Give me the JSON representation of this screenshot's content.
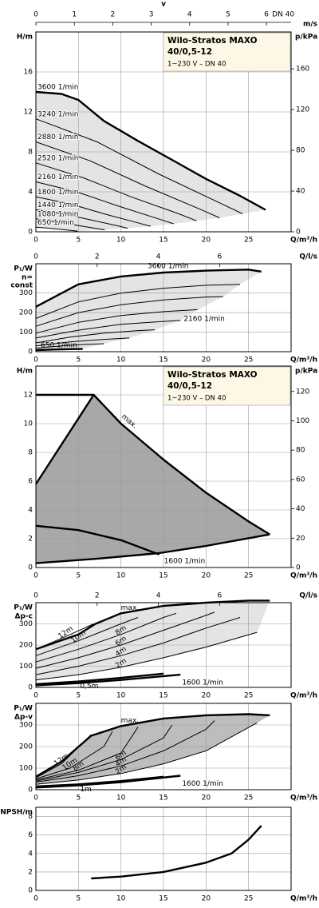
{
  "chart_data": [
    {
      "type": "line",
      "title": "Wilo-Stratos MAXO",
      "subtitle": "40/0,5-12",
      "note": "1~230 V – DN 40",
      "y_label": "H/m",
      "x_label": "Q/m³/h",
      "y2_label": "p/kPa",
      "xlim": [
        0,
        30
      ],
      "xticks": [
        0,
        5,
        10,
        15,
        20,
        25
      ],
      "ylim": [
        0,
        20
      ],
      "yticks": [
        0,
        4,
        8,
        12,
        16
      ],
      "y2lim": [
        0,
        196.2
      ],
      "y2ticks": [
        0,
        40,
        80,
        120,
        160
      ],
      "top_axis": {
        "label": "v",
        "unit": "m/s",
        "lim": [
          0,
          6.64
        ],
        "ticks": [
          0,
          1,
          2,
          3,
          4,
          5,
          6
        ],
        "note": "DN 40"
      },
      "grid": true,
      "color": "#000000",
      "shade_color": "#e4e4e4",
      "series": [
        {
          "name": "3600 1/min",
          "style": "bold",
          "x": [
            0,
            3,
            5,
            8,
            12,
            16,
            20,
            24,
            27
          ],
          "values": [
            14,
            13.8,
            13.2,
            11.1,
            9.1,
            7.2,
            5.3,
            3.6,
            2.2
          ]
        },
        {
          "name": "3240 1/min",
          "x": [
            0,
            7.2,
            14.4,
            21.6,
            24.3
          ],
          "values": [
            11.3,
            9.0,
            5.8,
            2.9,
            1.8
          ]
        },
        {
          "name": "2880 1/min",
          "x": [
            0,
            6.4,
            12.8,
            19.2,
            21.6
          ],
          "values": [
            9.0,
            7.1,
            4.6,
            2.3,
            1.4
          ]
        },
        {
          "name": "2520 1/min",
          "x": [
            0,
            5.6,
            11.2,
            16.8,
            18.9
          ],
          "values": [
            6.9,
            5.4,
            3.5,
            1.8,
            1.1
          ]
        },
        {
          "name": "2160 1/min",
          "x": [
            0,
            4.8,
            9.6,
            14.4,
            16.2
          ],
          "values": [
            5.0,
            4.0,
            2.6,
            1.3,
            0.8
          ]
        },
        {
          "name": "1800 1/min",
          "x": [
            0,
            4,
            8,
            12,
            13.5
          ],
          "values": [
            3.5,
            2.8,
            1.8,
            0.9,
            0.55
          ]
        },
        {
          "name": "1440 1/min",
          "x": [
            0,
            3.2,
            6.4,
            9.6,
            10.8
          ],
          "values": [
            2.2,
            1.8,
            1.2,
            0.6,
            0.35
          ]
        },
        {
          "name": "1080 1/min",
          "x": [
            0,
            2.4,
            4.8,
            7.2,
            8.1
          ],
          "values": [
            1.3,
            1.0,
            0.65,
            0.32,
            0.2
          ]
        },
        {
          "name": "650 1/min",
          "x": [
            0,
            1.4,
            2.9,
            4.3,
            4.9
          ],
          "values": [
            0.46,
            0.37,
            0.24,
            0.12,
            0.07
          ]
        }
      ]
    },
    {
      "type": "line",
      "y_label": "P₁/W",
      "mode_label": [
        "n=",
        "const"
      ],
      "x_label": "Q/m³/h",
      "xlim": [
        0,
        30
      ],
      "xticks": [
        0,
        5,
        10,
        15,
        20,
        25
      ],
      "ylim": [
        0,
        450
      ],
      "yticks": [
        0,
        100,
        200,
        300
      ],
      "top_axis": {
        "label": "Q/l/s",
        "lim": [
          0,
          8.333
        ],
        "ticks": [
          0,
          2,
          4,
          6
        ]
      },
      "grid": true,
      "color": "#000000",
      "shade_color": "#e4e4e4",
      "series": [
        {
          "name": "3600 1/min",
          "style": "bold",
          "x": [
            0,
            5,
            10,
            15,
            20,
            25,
            26.5
          ],
          "values": [
            230,
            345,
            385,
            405,
            415,
            420,
            410
          ]
        },
        {
          "x": [
            0,
            5,
            10,
            15,
            20,
            24
          ],
          "values": [
            170,
            255,
            300,
            325,
            340,
            345
          ]
        },
        {
          "x": [
            0,
            5,
            10,
            15,
            20,
            22
          ],
          "values": [
            130,
            200,
            240,
            265,
            280,
            282
          ]
        },
        {
          "x": [
            0,
            5,
            10,
            15,
            19
          ],
          "values": [
            95,
            150,
            185,
            205,
            215
          ]
        },
        {
          "name": "2160 1/min",
          "x": [
            0,
            5,
            10,
            15,
            17
          ],
          "values": [
            70,
            110,
            140,
            155,
            160
          ]
        },
        {
          "x": [
            0,
            4,
            8,
            12,
            14
          ],
          "values": [
            45,
            75,
            95,
            108,
            112
          ]
        },
        {
          "x": [
            0,
            4,
            8,
            11
          ],
          "values": [
            30,
            50,
            63,
            70
          ]
        },
        {
          "x": [
            0,
            3,
            6,
            8
          ],
          "values": [
            18,
            30,
            38,
            41
          ]
        },
        {
          "name": "650 1/min",
          "style": "bold",
          "x": [
            0,
            2,
            4,
            5.5
          ],
          "values": [
            8,
            11,
            13,
            14
          ]
        }
      ]
    },
    {
      "type": "line",
      "title": "Wilo-Stratos MAXO",
      "subtitle": "40/0,5-12",
      "note": "1~230 V – DN 40",
      "y_label": "H/m",
      "x_label": "Q/m³/h",
      "y2_label": "p/kPa",
      "xlim": [
        0,
        30
      ],
      "xticks": [
        0,
        5,
        10,
        15,
        20,
        25
      ],
      "ylim": [
        0,
        14
      ],
      "yticks": [
        0,
        2,
        4,
        6,
        8,
        10,
        12
      ],
      "y2lim": [
        0,
        137.3
      ],
      "y2ticks": [
        0,
        20,
        40,
        60,
        80,
        100,
        120
      ],
      "grid": true,
      "color": "#000000",
      "shade_color": "#a8a8a8",
      "series": [
        {
          "name": "max.",
          "style": "bold",
          "x": [
            0,
            6.8,
            10,
            15,
            20,
            25,
            27.5
          ],
          "values": [
            12,
            12,
            10,
            7.5,
            5.2,
            3.2,
            2.3
          ]
        },
        {
          "style": "bold",
          "x": [
            0,
            6.8
          ],
          "values": [
            5.8,
            12
          ]
        },
        {
          "name": "1600 1/min",
          "style": "bold",
          "x": [
            0,
            7,
            14.5,
            20,
            27.5
          ],
          "values": [
            0.3,
            0.6,
            1.0,
            1.5,
            2.3
          ]
        },
        {
          "style": "bold",
          "x": [
            0,
            5,
            10,
            14.5
          ],
          "values": [
            2.9,
            2.6,
            1.9,
            0.9
          ]
        }
      ]
    },
    {
      "type": "line",
      "y_label": "P₁/W",
      "mode_label": [
        "Δp-c"
      ],
      "x_label": "Q/m³/h",
      "xlim": [
        0,
        30
      ],
      "xticks": [
        0,
        5,
        10,
        15,
        20,
        25
      ],
      "ylim": [
        0,
        400
      ],
      "yticks": [
        0,
        100,
        200,
        300
      ],
      "top_axis": {
        "label": "Q/l/s",
        "lim": [
          0,
          8.333
        ],
        "ticks": [
          0,
          2,
          4,
          6
        ]
      },
      "grid": true,
      "color": "#000000",
      "shade_color": "#e4e4e4",
      "series": [
        {
          "name": "max.",
          "style": "bold",
          "x": [
            0,
            5,
            7,
            10,
            15,
            20,
            25,
            27.5
          ],
          "values": [
            180,
            250,
            300,
            350,
            385,
            400,
            410,
            410
          ]
        },
        {
          "name": "12m",
          "x": [
            0,
            3.5,
            6.8
          ],
          "values": [
            180,
            240,
            300
          ]
        },
        {
          "name": "10m",
          "x": [
            0,
            5,
            10,
            12
          ],
          "values": [
            150,
            220,
            300,
            330
          ]
        },
        {
          "name": "8m",
          "x": [
            0,
            5,
            10,
            15,
            16.5
          ],
          "values": [
            120,
            180,
            250,
            330,
            350
          ]
        },
        {
          "name": "6m",
          "x": [
            0,
            5,
            10,
            15,
            20,
            21
          ],
          "values": [
            90,
            140,
            200,
            270,
            340,
            355
          ]
        },
        {
          "name": "4m",
          "x": [
            0,
            5,
            10,
            15,
            20,
            24
          ],
          "values": [
            60,
            100,
            150,
            210,
            280,
            330
          ]
        },
        {
          "name": "2m",
          "x": [
            0,
            5,
            10,
            15,
            20,
            26
          ],
          "values": [
            35,
            60,
            95,
            140,
            190,
            260
          ]
        },
        {
          "name": "0,5m",
          "style": "bold",
          "x": [
            0,
            5,
            10,
            15
          ],
          "values": [
            15,
            28,
            45,
            65
          ]
        },
        {
          "name": "1600 1/min",
          "style": "bold",
          "x": [
            0,
            5,
            10,
            17
          ],
          "values": [
            10,
            20,
            35,
            60
          ]
        }
      ]
    },
    {
      "type": "line",
      "y_label": "P₁/W",
      "mode_label": [
        "Δp-v"
      ],
      "x_label": "Q/m³/h",
      "xlim": [
        0,
        30
      ],
      "xticks": [
        0,
        5,
        10,
        15,
        20,
        25
      ],
      "ylim": [
        0,
        400
      ],
      "yticks": [
        0,
        100,
        200,
        300
      ],
      "grid": true,
      "color": "#000000",
      "shade_color": "#bdbdbd",
      "series": [
        {
          "name": "max.",
          "style": "bold",
          "x": [
            0,
            3,
            6.5,
            10,
            15,
            20,
            25,
            27.5
          ],
          "values": [
            60,
            130,
            250,
            295,
            330,
            345,
            350,
            345
          ]
        },
        {
          "name": "12m",
          "x": [
            0,
            3,
            6.5
          ],
          "values": [
            55,
            120,
            255
          ]
        },
        {
          "name": "10m",
          "x": [
            0,
            4,
            8,
            9
          ],
          "values": [
            50,
            100,
            200,
            270
          ]
        },
        {
          "name": "8m",
          "x": [
            0,
            5,
            10,
            12
          ],
          "values": [
            45,
            90,
            170,
            290
          ]
        },
        {
          "name": "6m",
          "x": [
            0,
            5,
            10,
            15,
            16
          ],
          "values": [
            40,
            80,
            140,
            240,
            300
          ]
        },
        {
          "name": "4m",
          "x": [
            0,
            5,
            10,
            15,
            20,
            21
          ],
          "values": [
            35,
            65,
            110,
            180,
            280,
            320
          ]
        },
        {
          "name": "2m",
          "x": [
            0,
            5,
            10,
            15,
            20,
            26
          ],
          "values": [
            25,
            45,
            75,
            120,
            180,
            310
          ]
        },
        {
          "name": "1m",
          "style": "bold",
          "x": [
            0,
            5,
            10,
            15
          ],
          "values": [
            15,
            25,
            40,
            60
          ]
        },
        {
          "name": "1600 1/min",
          "style": "bold",
          "x": [
            0,
            5,
            10,
            17
          ],
          "values": [
            10,
            20,
            35,
            65
          ]
        }
      ]
    },
    {
      "type": "line",
      "y_label": "NPSH/m",
      "x_label": "Q/m³/h",
      "xlim": [
        0,
        30
      ],
      "xticks": [
        0,
        5,
        10,
        15,
        20,
        25
      ],
      "ylim": [
        0,
        9
      ],
      "yticks": [
        0,
        2,
        4,
        6,
        8
      ],
      "grid": true,
      "color": "#000000",
      "series": [
        {
          "style": "bold",
          "x": [
            6.5,
            10,
            15,
            20,
            23,
            25,
            26.5
          ],
          "values": [
            1.3,
            1.5,
            2.0,
            3.0,
            4.0,
            5.5,
            7.0
          ]
        }
      ]
    }
  ]
}
